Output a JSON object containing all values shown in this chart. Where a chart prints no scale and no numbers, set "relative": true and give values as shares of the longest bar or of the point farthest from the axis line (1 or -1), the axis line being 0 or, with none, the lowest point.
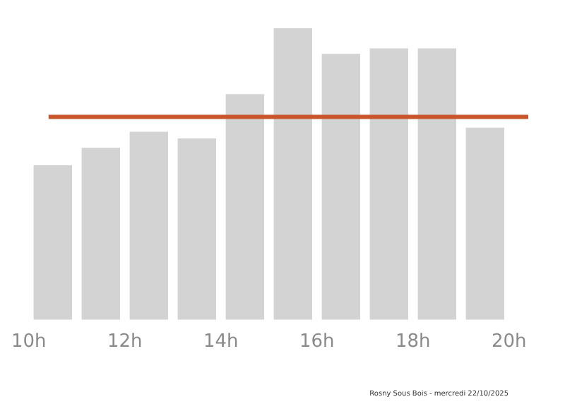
{
  "chart_data": {
    "type": "bar",
    "relative": true,
    "x": [
      10.5,
      11.5,
      12.5,
      13.5,
      14.5,
      15.5,
      16.5,
      17.5,
      18.5,
      19.5
    ],
    "values": [
      0.53,
      0.59,
      0.645,
      0.622,
      0.774,
      1,
      0.912,
      0.931,
      0.931,
      0.659
    ],
    "color": "#d3d3d3",
    "xlim": [
      10,
      20.4
    ],
    "xticks": [
      {
        "value": 10,
        "label": "10h"
      },
      {
        "value": 12,
        "label": "12h"
      },
      {
        "value": 14,
        "label": "14h"
      },
      {
        "value": 16,
        "label": "16h"
      },
      {
        "value": 18,
        "label": "18h"
      },
      {
        "value": 20,
        "label": "20h"
      }
    ],
    "ref_lines": [
      {
        "axis": "y",
        "value": 0.696,
        "color": "#c8562a"
      }
    ],
    "grid": false,
    "legend": false,
    "annotations": [
      "Rosny Sous Bois - mercredi 22/10/2025"
    ]
  }
}
